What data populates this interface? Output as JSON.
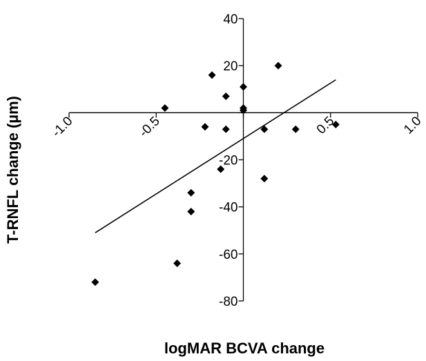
{
  "chart_data": {
    "type": "scatter",
    "title": "",
    "xlabel": "logMAR BCVA change",
    "ylabel": "T-RNFL change (µm)",
    "xlim": [
      -1.0,
      1.0
    ],
    "ylim": [
      -80,
      40
    ],
    "x_ticks": [
      -1.0,
      -0.5,
      0.0,
      0.5,
      1.0
    ],
    "x_tick_labels": [
      "-1.0",
      "-0.5",
      "",
      "0.5",
      "1.0"
    ],
    "y_ticks": [
      -80,
      -60,
      -40,
      -20,
      0,
      20,
      40
    ],
    "y_tick_labels": [
      "-80",
      "-60",
      "-40",
      "-20",
      "",
      "20",
      "40"
    ],
    "grid": false,
    "legend": "none",
    "marker": "diamond",
    "marker_color": "#000000",
    "series": [
      {
        "points": [
          {
            "x": -0.85,
            "y": -72
          },
          {
            "x": -0.45,
            "y": 2
          },
          {
            "x": -0.38,
            "y": -64
          },
          {
            "x": -0.3,
            "y": -34
          },
          {
            "x": -0.3,
            "y": -42
          },
          {
            "x": -0.22,
            "y": -6
          },
          {
            "x": -0.18,
            "y": 16
          },
          {
            "x": -0.13,
            "y": -24
          },
          {
            "x": -0.1,
            "y": 7
          },
          {
            "x": -0.1,
            "y": -7
          },
          {
            "x": 0.0,
            "y": 11
          },
          {
            "x": 0.0,
            "y": 2
          },
          {
            "x": 0.0,
            "y": 1
          },
          {
            "x": 0.12,
            "y": -7
          },
          {
            "x": 0.12,
            "y": -28
          },
          {
            "x": 0.2,
            "y": 20
          },
          {
            "x": 0.3,
            "y": -7
          },
          {
            "x": 0.53,
            "y": -5
          }
        ]
      }
    ],
    "trendline": {
      "x": [
        -0.85,
        0.53
      ],
      "y": [
        -51,
        14
      ]
    }
  }
}
